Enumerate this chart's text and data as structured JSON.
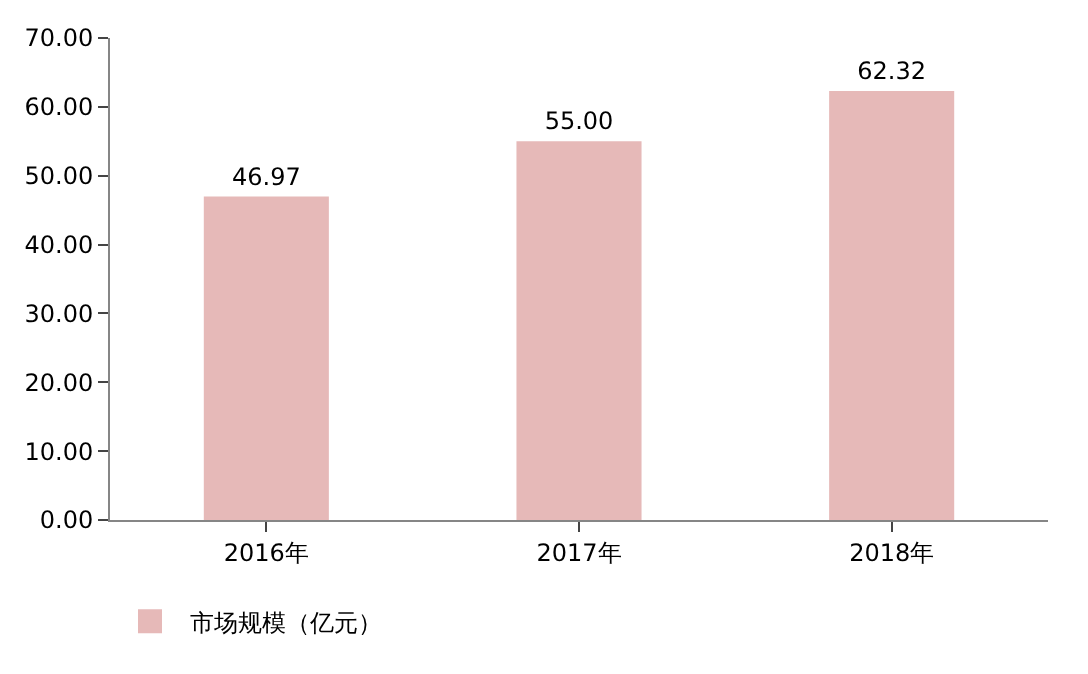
{
  "chart_data": {
    "type": "bar",
    "categories": [
      "2016年",
      "2017年",
      "2018年"
    ],
    "series": [
      {
        "name": "市场规模（亿元）",
        "color": "#e6b9b8",
        "values": [
          46.97,
          55.0,
          62.32
        ]
      }
    ],
    "value_labels": [
      "46.97",
      "55.00",
      "62.32"
    ],
    "ylim": [
      0,
      70
    ],
    "yticks": [
      {
        "value": 0,
        "label": "0.00"
      },
      {
        "value": 10,
        "label": "10.00"
      },
      {
        "value": 20,
        "label": "20.00"
      },
      {
        "value": 30,
        "label": "30.00"
      },
      {
        "value": 40,
        "label": "40.00"
      },
      {
        "value": 50,
        "label": "50.00"
      },
      {
        "value": 60,
        "label": "60.00"
      },
      {
        "value": 70,
        "label": "70.00"
      }
    ],
    "legend": "bottom"
  }
}
